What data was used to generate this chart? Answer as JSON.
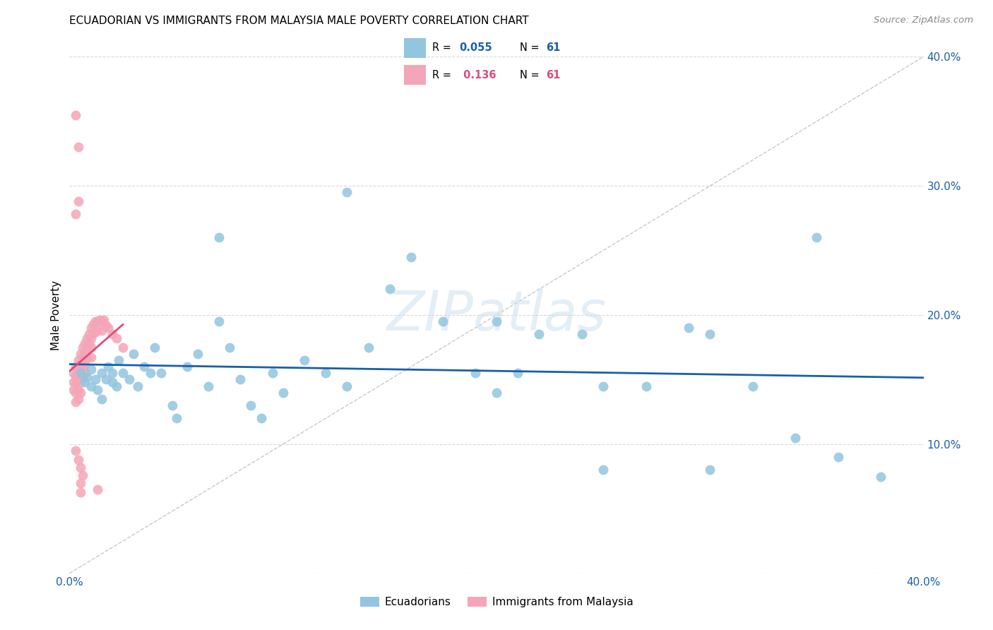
{
  "title": "ECUADORIAN VS IMMIGRANTS FROM MALAYSIA MALE POVERTY CORRELATION CHART",
  "source": "Source: ZipAtlas.com",
  "ylabel": "Male Poverty",
  "xlim": [
    0.0,
    0.4
  ],
  "ylim": [
    0.0,
    0.4
  ],
  "x_ticks": [
    0.0,
    0.1,
    0.2,
    0.3,
    0.4
  ],
  "y_ticks": [
    0.0,
    0.1,
    0.2,
    0.3,
    0.4
  ],
  "blue_color": "#92c5de",
  "pink_color": "#f4a6b8",
  "line_blue": "#1a5fa8",
  "line_pink": "#d94f7a",
  "diag_color": "#c8c8c8",
  "watermark_color": "#c8dff0",
  "ecuadorians_x": [
    0.005,
    0.007,
    0.008,
    0.01,
    0.01,
    0.012,
    0.013,
    0.015,
    0.015,
    0.017,
    0.018,
    0.02,
    0.02,
    0.022,
    0.023,
    0.025,
    0.028,
    0.03,
    0.032,
    0.035,
    0.038,
    0.04,
    0.043,
    0.048,
    0.05,
    0.055,
    0.06,
    0.065,
    0.07,
    0.075,
    0.08,
    0.085,
    0.09,
    0.095,
    0.1,
    0.11,
    0.12,
    0.13,
    0.14,
    0.15,
    0.16,
    0.175,
    0.19,
    0.2,
    0.21,
    0.22,
    0.24,
    0.25,
    0.27,
    0.29,
    0.3,
    0.32,
    0.34,
    0.36,
    0.38,
    0.13,
    0.2,
    0.25,
    0.3,
    0.35,
    0.07
  ],
  "ecuadorians_y": [
    0.155,
    0.148,
    0.152,
    0.145,
    0.158,
    0.15,
    0.142,
    0.155,
    0.135,
    0.15,
    0.16,
    0.148,
    0.155,
    0.145,
    0.165,
    0.155,
    0.15,
    0.17,
    0.145,
    0.16,
    0.155,
    0.175,
    0.155,
    0.13,
    0.12,
    0.16,
    0.17,
    0.145,
    0.195,
    0.175,
    0.15,
    0.13,
    0.12,
    0.155,
    0.14,
    0.165,
    0.155,
    0.145,
    0.175,
    0.22,
    0.245,
    0.195,
    0.155,
    0.195,
    0.155,
    0.185,
    0.185,
    0.145,
    0.145,
    0.19,
    0.185,
    0.145,
    0.105,
    0.09,
    0.075,
    0.295,
    0.14,
    0.08,
    0.08,
    0.26,
    0.26
  ],
  "malaysia_x": [
    0.002,
    0.002,
    0.002,
    0.003,
    0.003,
    0.003,
    0.003,
    0.003,
    0.004,
    0.004,
    0.004,
    0.004,
    0.004,
    0.005,
    0.005,
    0.005,
    0.005,
    0.005,
    0.006,
    0.006,
    0.006,
    0.006,
    0.007,
    0.007,
    0.007,
    0.007,
    0.008,
    0.008,
    0.008,
    0.009,
    0.009,
    0.01,
    0.01,
    0.01,
    0.01,
    0.011,
    0.011,
    0.012,
    0.012,
    0.013,
    0.013,
    0.014,
    0.015,
    0.015,
    0.016,
    0.017,
    0.018,
    0.02,
    0.022,
    0.025,
    0.003,
    0.004,
    0.005,
    0.006,
    0.003,
    0.004,
    0.005,
    0.005,
    0.004,
    0.003,
    0.013
  ],
  "malaysia_y": [
    0.155,
    0.148,
    0.142,
    0.16,
    0.153,
    0.147,
    0.14,
    0.133,
    0.165,
    0.158,
    0.15,
    0.142,
    0.135,
    0.17,
    0.163,
    0.155,
    0.148,
    0.14,
    0.175,
    0.168,
    0.16,
    0.152,
    0.178,
    0.17,
    0.162,
    0.155,
    0.182,
    0.175,
    0.167,
    0.185,
    0.178,
    0.19,
    0.182,
    0.175,
    0.167,
    0.193,
    0.186,
    0.195,
    0.187,
    0.195,
    0.188,
    0.196,
    0.195,
    0.188,
    0.196,
    0.192,
    0.19,
    0.185,
    0.182,
    0.175,
    0.095,
    0.088,
    0.082,
    0.076,
    0.355,
    0.288,
    0.07,
    0.063,
    0.33,
    0.278,
    0.065
  ]
}
